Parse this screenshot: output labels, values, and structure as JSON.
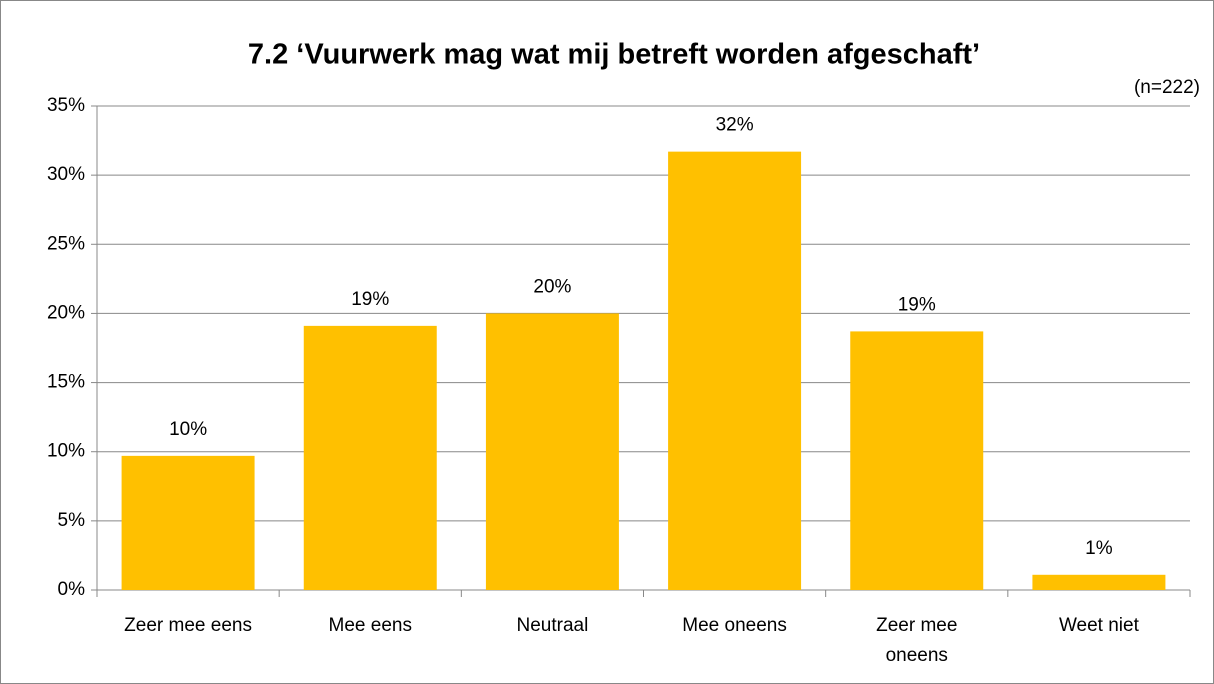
{
  "chart_data": {
    "type": "bar",
    "title": "7.2 ‘Vuurwerk mag wat mij betreft worden afgeschaft’",
    "annotation": "(n=222)",
    "categories": [
      "Zeer mee eens",
      "Mee eens",
      "Neutraal",
      "Mee oneens",
      "Zeer mee oneens",
      "Weet niet"
    ],
    "values": [
      9.7,
      19.1,
      20.0,
      31.7,
      18.7,
      1.1
    ],
    "value_labels": [
      "10%",
      "19%",
      "20%",
      "32%",
      "19%",
      "1%"
    ],
    "color": "#ffc000",
    "ylim": [
      0,
      35
    ],
    "yticks": [
      {
        "value": 0,
        "label": "0%"
      },
      {
        "value": 5,
        "label": "5%"
      },
      {
        "value": 10,
        "label": "10%"
      },
      {
        "value": 15,
        "label": "15%"
      },
      {
        "value": 20,
        "label": "20%"
      },
      {
        "value": 25,
        "label": "25%"
      },
      {
        "value": 30,
        "label": "30%"
      },
      {
        "value": 35,
        "label": "35%"
      }
    ],
    "grid": true
  }
}
